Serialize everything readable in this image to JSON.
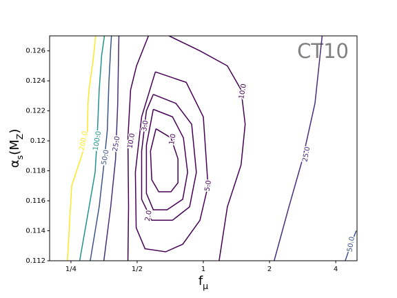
{
  "chart_data": {
    "type": "contour",
    "xlabel": "f_μ",
    "ylabel": "α_s(M_Z)",
    "annotation": "CT10",
    "xscale": "log",
    "xlim": [
      0.2,
      5
    ],
    "ylim": [
      0.112,
      0.127
    ],
    "xticks": [
      {
        "value": 0.25,
        "label": "1/4"
      },
      {
        "value": 0.5,
        "label": "1/2"
      },
      1,
      2,
      4
    ],
    "yticks": [
      0.112,
      0.114,
      0.116,
      0.118,
      0.12,
      0.122,
      0.124,
      0.126
    ],
    "contours": [
      {
        "level": 1,
        "level_label": "1.0",
        "color": "#440154",
        "label_pos": [
          0.724,
          0.1201
        ],
        "x": [
          0.609,
          0.713,
          0.767,
          0.767,
          0.713,
          0.627,
          0.583,
          0.575,
          0.609
        ],
        "y": [
          0.1208,
          0.1202,
          0.1188,
          0.1172,
          0.1166,
          0.1166,
          0.1174,
          0.1193,
          0.1208
        ]
      },
      {
        "level": 2,
        "level_label": "2.0",
        "color": "#440154",
        "label_pos": [
          0.563,
          0.115
        ],
        "x": [
          0.592,
          0.724,
          0.812,
          0.848,
          0.806,
          0.684,
          0.592,
          0.551,
          0.551,
          0.592
        ],
        "y": [
          0.1221,
          0.1216,
          0.1202,
          0.1179,
          0.1161,
          0.1154,
          0.1154,
          0.1165,
          0.1197,
          0.1221
        ]
      },
      {
        "level": 3,
        "level_label": "3.0",
        "color": "#440154",
        "label_pos": [
          0.543,
          0.121
        ],
        "x": [
          0.592,
          0.75,
          0.885,
          0.93,
          0.866,
          0.724,
          0.583,
          0.524,
          0.524,
          0.551,
          0.592
        ],
        "y": [
          0.1231,
          0.1225,
          0.1211,
          0.1179,
          0.1156,
          0.1147,
          0.1147,
          0.1161,
          0.1193,
          0.122,
          0.1231
        ]
      },
      {
        "level": 5,
        "level_label": "5.0",
        "color": "#440154",
        "label_pos": [
          1.05,
          0.117
        ],
        "x": [
          0.605,
          0.836,
          1,
          1.05,
          0.965,
          0.806,
          0.674,
          0.543,
          0.495,
          0.491,
          0.524,
          0.605
        ],
        "y": [
          0.1246,
          0.1239,
          0.1216,
          0.117,
          0.1147,
          0.1131,
          0.1126,
          0.1128,
          0.1142,
          0.1179,
          0.1216,
          0.1246
        ]
      },
      {
        "level": 10,
        "level_label": "10.0",
        "color": "#440154",
        "label_pos": [
          0.47,
          0.12
        ],
        "x": [
          0.454,
          0.457,
          0.454,
          0.467,
          0.497,
          0.563
        ],
        "y": [
          0.112,
          0.1156,
          0.1202,
          0.1234,
          0.125,
          0.127
        ]
      },
      {
        "level": 10,
        "level_label": "10.0",
        "color": "#440154",
        "label_pos": [
          1.51,
          0.1233
        ],
        "x": [
          0.698,
          0.965,
          1.286,
          1.485,
          1.55,
          1.485,
          1.286,
          1.18
        ],
        "y": [
          0.127,
          0.126,
          0.125,
          0.1234,
          0.1211,
          0.1184,
          0.1156,
          0.112
        ]
      },
      {
        "level": 25,
        "level_label": "25.0",
        "color": "#472c7a",
        "label_pos": [
          0.402,
          0.1198
        ],
        "x": [
          0.353,
          0.379,
          0.399,
          0.408,
          0.413
        ],
        "y": [
          0.112,
          0.1156,
          0.1188,
          0.1225,
          0.127
        ]
      },
      {
        "level": 25,
        "level_label": "25.0",
        "color": "#472c7a",
        "label_pos": [
          2.94,
          0.1191
        ],
        "x": [
          2.1,
          2.45,
          2.83,
          3.22,
          3.47
        ],
        "y": [
          0.112,
          0.1156,
          0.1188,
          0.1225,
          0.127
        ]
      },
      {
        "level": 50,
        "level_label": "50.0",
        "color": "#3b528b",
        "label_pos": [
          0.358,
          0.1189
        ],
        "x": [
          0.306,
          0.336,
          0.353,
          0.366,
          0.372,
          0.379,
          0.382
        ],
        "y": [
          0.112,
          0.1156,
          0.1184,
          0.1207,
          0.1239,
          0.1262,
          0.127
        ]
      },
      {
        "level": 50,
        "level_label": "50.0",
        "color": "#3b528b",
        "label_pos": [
          4.69,
          0.1131
        ],
        "x": [
          4.42,
          4.69,
          4.96
        ],
        "y": [
          0.112,
          0.1131,
          0.114
        ]
      },
      {
        "level": 100,
        "level_label": "100.0",
        "color": "#21918c",
        "label_pos": [
          0.329,
          0.12
        ],
        "x": [
          0.274,
          0.295,
          0.322,
          0.329,
          0.336,
          0.345,
          0.355
        ],
        "y": [
          0.112,
          0.1147,
          0.1179,
          0.1202,
          0.1234,
          0.1257,
          0.127
        ]
      },
      {
        "level": 200,
        "level_label": "200.0",
        "color": "#fde725",
        "label_pos": [
          0.285,
          0.12
        ],
        "x": [
          0.241,
          0.252,
          0.281,
          0.297,
          0.299,
          0.302,
          0.315,
          0.324
        ],
        "y": [
          0.112,
          0.117,
          0.1191,
          0.1204,
          0.1225,
          0.1234,
          0.1253,
          0.127
        ]
      }
    ]
  }
}
